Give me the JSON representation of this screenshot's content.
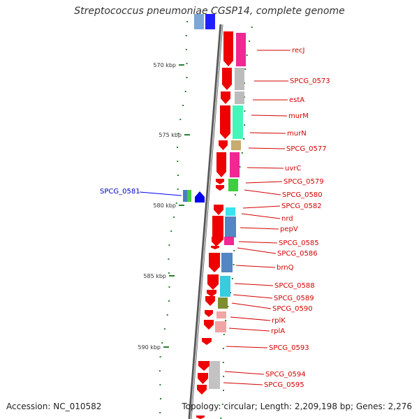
{
  "title": "Streptococcus pneumoniae CGSP14, complete genome",
  "accession": "Accession: NC_010582",
  "summary": "Topology: circular; Length: 2,209,198 bp; Genes: 2,276",
  "scale_labels": [
    "570 kbp",
    "575 kbp",
    "580 kbp",
    "585 kbp",
    "590 kbp"
  ],
  "gene_labels": [
    "recJ",
    "SPCG_0573",
    "estA",
    "murM",
    "murN",
    "SPCG_0577",
    "uvrC",
    "SPCG_0579",
    "SPCG_0580",
    "SPCG_0582",
    "nrd",
    "pepV",
    "SPCG_0585",
    "SPCG_0586",
    "brnQ",
    "SPCG_0588",
    "SPCG_0589",
    "SPCG_0590",
    "rplK",
    "rplA",
    "SPCG_0593",
    "SPCG_0594",
    "SPCG_0595"
  ],
  "reverse_gene_label": "SPCG_0581",
  "colors": {
    "gene_forward": "#ee0000",
    "gene_reverse": "#0000ee",
    "label_forward": "#d40000",
    "label_reverse": "#0000c8",
    "backbone": "#888888",
    "gc_dots": "#2e7d32"
  }
}
